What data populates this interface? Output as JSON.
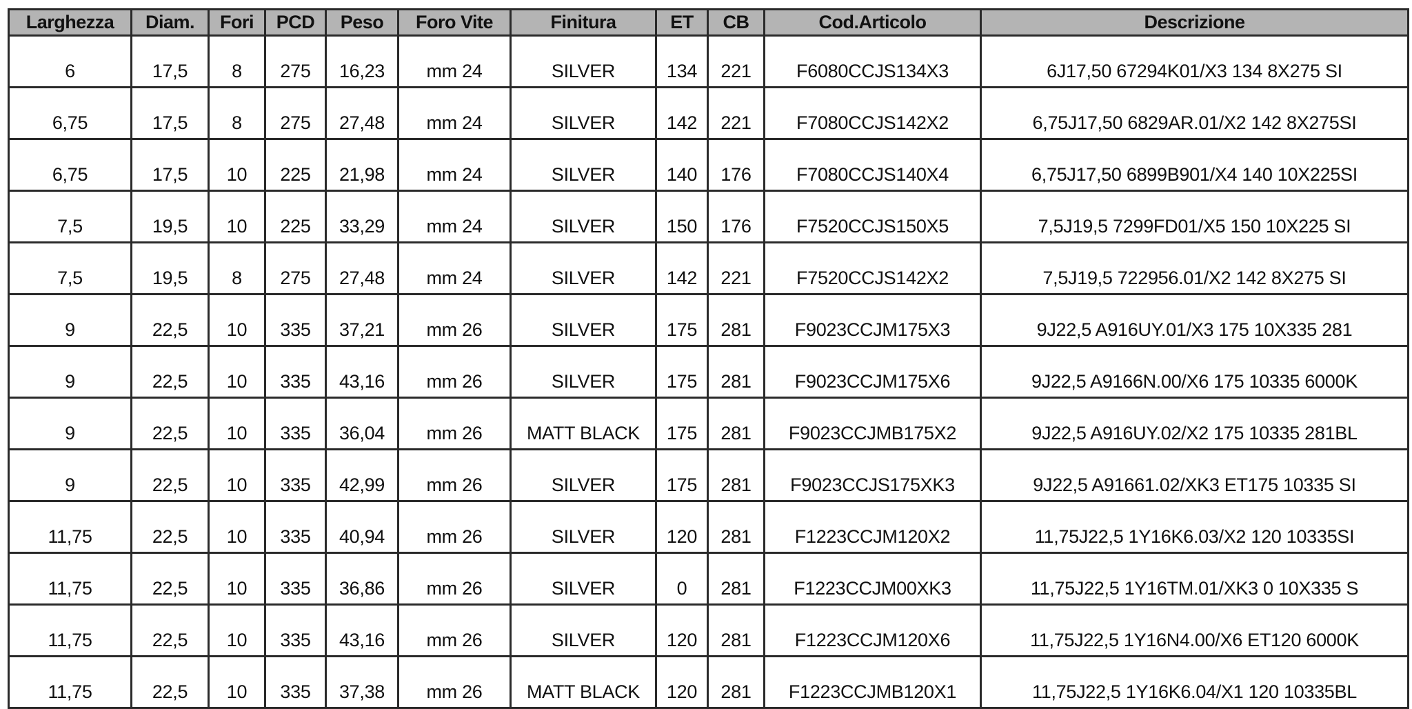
{
  "table": {
    "headers": [
      "Larghezza",
      "Diam.",
      "Fori",
      "PCD",
      "Peso",
      "Foro Vite",
      "Finitura",
      "ET",
      "CB",
      "Cod.Articolo",
      "Descrizione"
    ],
    "rows": [
      [
        "6",
        "17,5",
        "8",
        "275",
        "16,23",
        "mm 24",
        "SILVER",
        "134",
        "221",
        "F6080CCJS134X3",
        "6J17,50 67294K01/X3 134 8X275 SI"
      ],
      [
        "6,75",
        "17,5",
        "8",
        "275",
        "27,48",
        "mm 24",
        "SILVER",
        "142",
        "221",
        "F7080CCJS142X2",
        "6,75J17,50 6829AR.01/X2 142 8X275SI"
      ],
      [
        "6,75",
        "17,5",
        "10",
        "225",
        "21,98",
        "mm 24",
        "SILVER",
        "140",
        "176",
        "F7080CCJS140X4",
        "6,75J17,50 6899B901/X4 140 10X225SI"
      ],
      [
        "7,5",
        "19,5",
        "10",
        "225",
        "33,29",
        "mm 24",
        "SILVER",
        "150",
        "176",
        "F7520CCJS150X5",
        "7,5J19,5 7299FD01/X5 150 10X225 SI"
      ],
      [
        "7,5",
        "19,5",
        "8",
        "275",
        "27,48",
        "mm 24",
        "SILVER",
        "142",
        "221",
        "F7520CCJS142X2",
        "7,5J19,5 722956.01/X2 142 8X275 SI"
      ],
      [
        "9",
        "22,5",
        "10",
        "335",
        "37,21",
        "mm 26",
        "SILVER",
        "175",
        "281",
        "F9023CCJM175X3",
        "9J22,5 A916UY.01/X3 175 10X335 281"
      ],
      [
        "9",
        "22,5",
        "10",
        "335",
        "43,16",
        "mm 26",
        "SILVER",
        "175",
        "281",
        "F9023CCJM175X6",
        "9J22,5 A9166N.00/X6 175 10335 6000K"
      ],
      [
        "9",
        "22,5",
        "10",
        "335",
        "36,04",
        "mm 26",
        "MATT BLACK",
        "175",
        "281",
        "F9023CCJMB175X2",
        "9J22,5 A916UY.02/X2 175 10335 281BL"
      ],
      [
        "9",
        "22,5",
        "10",
        "335",
        "42,99",
        "mm 26",
        "SILVER",
        "175",
        "281",
        "F9023CCJS175XK3",
        "9J22,5 A91661.02/XK3 ET175 10335 SI"
      ],
      [
        "11,75",
        "22,5",
        "10",
        "335",
        "40,94",
        "mm 26",
        "SILVER",
        "120",
        "281",
        "F1223CCJM120X2",
        "11,75J22,5 1Y16K6.03/X2 120 10335SI"
      ],
      [
        "11,75",
        "22,5",
        "10",
        "335",
        "36,86",
        "mm 26",
        "SILVER",
        "0",
        "281",
        "F1223CCJM00XK3",
        "11,75J22,5 1Y16TM.01/XK3 0 10X335 S"
      ],
      [
        "11,75",
        "22,5",
        "10",
        "335",
        "43,16",
        "mm 26",
        "SILVER",
        "120",
        "281",
        "F1223CCJM120X6",
        "11,75J22,5 1Y16N4.00/X6 ET120 6000K"
      ],
      [
        "11,75",
        "22,5",
        "10",
        "335",
        "37,38",
        "mm 26",
        "MATT BLACK",
        "120",
        "281",
        "F1223CCJMB120X1",
        "11,75J22,5 1Y16K6.04/X1 120 10335BL"
      ]
    ]
  },
  "colors": {
    "header_bg": "#b4b4b4",
    "border": "#2a2a2a"
  }
}
